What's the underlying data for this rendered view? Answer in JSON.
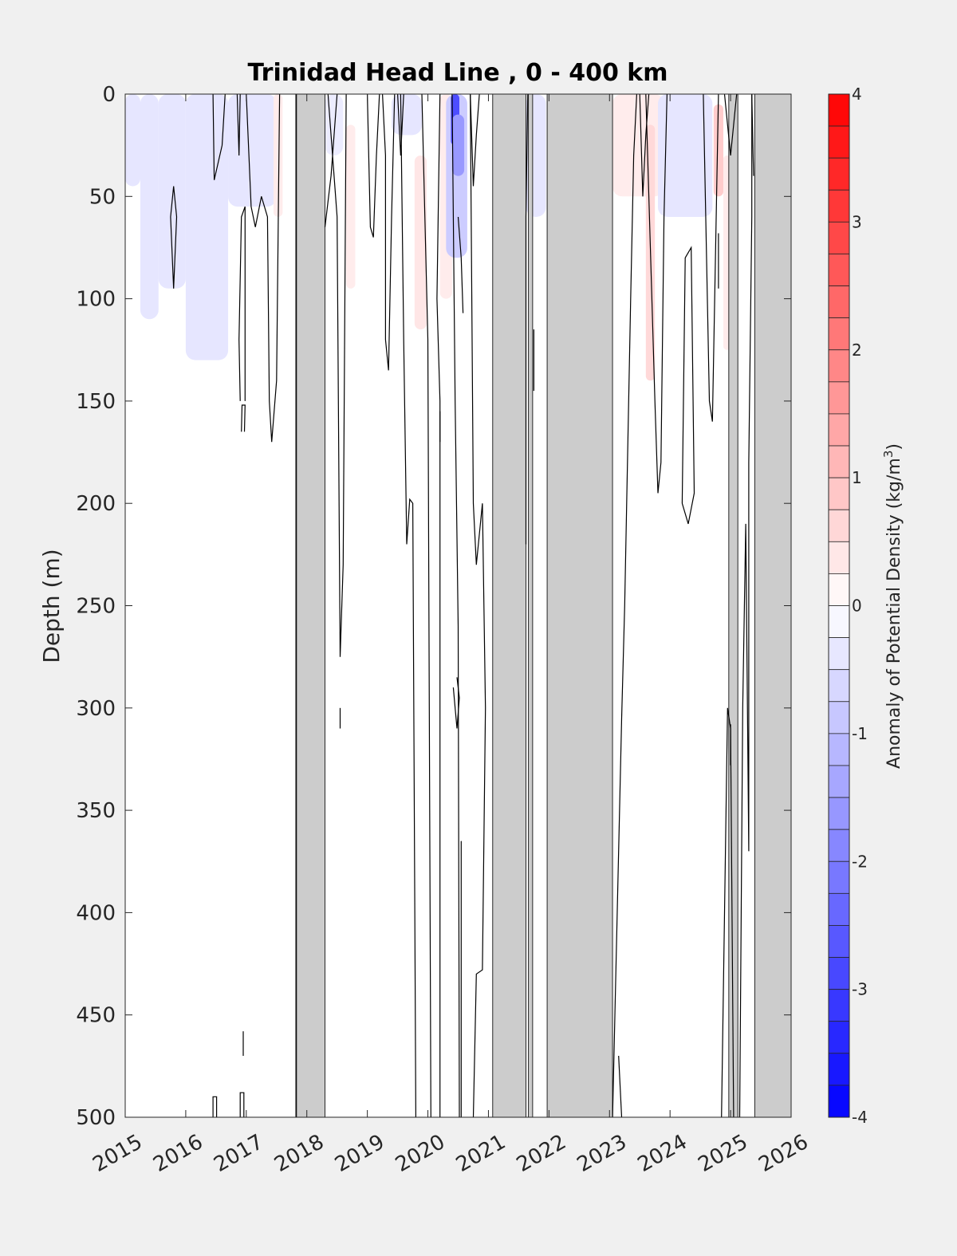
{
  "chart_data": {
    "type": "heatmap",
    "title": "Trinidad Head Line , 0 - 400 km",
    "xlabel": "",
    "ylabel": "Depth (m)",
    "xlim": [
      2015,
      2026
    ],
    "ylim": [
      0,
      500
    ],
    "y_reversed": true,
    "x_ticks": [
      "2015",
      "2016",
      "2017",
      "2018",
      "2019",
      "2020",
      "2021",
      "2022",
      "2023",
      "2024",
      "2025",
      "2026"
    ],
    "y_ticks": [
      "0",
      "50",
      "100",
      "150",
      "200",
      "250",
      "300",
      "350",
      "400",
      "450",
      "500"
    ],
    "colorbar": {
      "label": "Anomaly of Potential Density (kg/m",
      "label_superscript": "3",
      "label_suffix": ")",
      "range": [
        -4,
        4
      ],
      "ticks": [
        "4",
        "3",
        "2",
        "1",
        "0",
        "-1",
        "-2",
        "-3",
        "-4"
      ],
      "levels": 32,
      "color_min": "#0000ff",
      "color_mid": "#ffffff",
      "color_max": "#ff0000"
    },
    "no_data_color": "#cccccc",
    "no_data_periods": [
      [
        2017.83,
        2018.3
      ],
      [
        2021.07,
        2021.62
      ],
      [
        2021.66,
        2021.73
      ],
      [
        2021.97,
        2023.05
      ],
      [
        2024.97,
        2025.12
      ],
      [
        2025.4,
        2026.0
      ]
    ],
    "anomaly_patches": [
      {
        "x0": 2015.0,
        "x1": 2015.25,
        "y0": 0,
        "y1": 45,
        "value": -0.4
      },
      {
        "x0": 2015.25,
        "x1": 2015.55,
        "y0": 0,
        "y1": 110,
        "value": -0.4
      },
      {
        "x0": 2015.55,
        "x1": 2016.0,
        "y0": 0,
        "y1": 95,
        "value": -0.4
      },
      {
        "x0": 2016.0,
        "x1": 2016.7,
        "y0": 0,
        "y1": 130,
        "value": -0.4
      },
      {
        "x0": 2016.7,
        "x1": 2017.5,
        "y0": 0,
        "y1": 55,
        "value": -0.4
      },
      {
        "x0": 2017.45,
        "x1": 2017.6,
        "y0": 0,
        "y1": 60,
        "value": 0.3
      },
      {
        "x0": 2018.3,
        "x1": 2018.6,
        "y0": 0,
        "y1": 30,
        "value": -0.3
      },
      {
        "x0": 2018.65,
        "x1": 2018.8,
        "y0": 15,
        "y1": 95,
        "value": 0.3
      },
      {
        "x0": 2019.4,
        "x1": 2019.9,
        "y0": 0,
        "y1": 20,
        "value": -0.4
      },
      {
        "x0": 2019.78,
        "x1": 2019.98,
        "y0": 30,
        "y1": 115,
        "value": 0.4
      },
      {
        "x0": 2020.2,
        "x1": 2020.4,
        "y0": 0,
        "y1": 100,
        "value": 0.3
      },
      {
        "x0": 2020.3,
        "x1": 2020.65,
        "y0": 0,
        "y1": 80,
        "value": -0.8
      },
      {
        "x0": 2020.38,
        "x1": 2020.52,
        "y0": 0,
        "y1": 25,
        "value": -2.8
      },
      {
        "x0": 2020.4,
        "x1": 2020.6,
        "y0": 10,
        "y1": 40,
        "value": -1.6
      },
      {
        "x0": 2021.62,
        "x1": 2021.95,
        "y0": 0,
        "y1": 60,
        "value": -0.4
      },
      {
        "x0": 2023.05,
        "x1": 2023.9,
        "y0": 0,
        "y1": 50,
        "value": 0.3
      },
      {
        "x0": 2023.6,
        "x1": 2023.75,
        "y0": 15,
        "y1": 140,
        "value": 0.6
      },
      {
        "x0": 2023.8,
        "x1": 2024.7,
        "y0": 0,
        "y1": 60,
        "value": -0.4
      },
      {
        "x0": 2024.72,
        "x1": 2024.88,
        "y0": 5,
        "y1": 50,
        "value": 0.8
      },
      {
        "x0": 2024.88,
        "x1": 2025.0,
        "y0": 30,
        "y1": 125,
        "value": 0.3
      }
    ],
    "contours": [
      [
        [
          2016.45,
          500
        ],
        [
          2016.45,
          490
        ],
        [
          2016.51,
          490
        ],
        [
          2016.51,
          500
        ]
      ],
      [
        [
          2016.9,
          500
        ],
        [
          2016.9,
          488
        ],
        [
          2016.96,
          488
        ],
        [
          2016.96,
          500
        ]
      ],
      [
        [
          2016.95,
          458
        ],
        [
          2016.95,
          470
        ]
      ],
      [
        [
          2015.8,
          95
        ],
        [
          2015.75,
          60
        ],
        [
          2015.8,
          45
        ],
        [
          2015.85,
          60
        ],
        [
          2015.8,
          95
        ]
      ],
      [
        [
          2016.45,
          0
        ],
        [
          2016.47,
          42
        ],
        [
          2016.6,
          25
        ],
        [
          2016.65,
          0
        ]
      ],
      [
        [
          2016.85,
          0
        ],
        [
          2016.88,
          30
        ],
        [
          2016.9,
          0
        ]
      ],
      [
        [
          2016.9,
          150
        ],
        [
          2016.88,
          120
        ],
        [
          2016.92,
          60
        ],
        [
          2016.98,
          55
        ],
        [
          2016.98,
          150
        ]
      ],
      [
        [
          2016.92,
          165
        ],
        [
          2016.93,
          152
        ],
        [
          2016.98,
          152
        ],
        [
          2016.97,
          165
        ]
      ],
      [
        [
          2017.0,
          0
        ],
        [
          2017.08,
          55
        ],
        [
          2017.15,
          65
        ],
        [
          2017.25,
          50
        ],
        [
          2017.35,
          60
        ],
        [
          2017.38,
          150
        ],
        [
          2017.42,
          170
        ],
        [
          2017.5,
          140
        ],
        [
          2017.55,
          0
        ]
      ],
      [
        [
          2017.82,
          500
        ],
        [
          2017.82,
          0
        ]
      ],
      [
        [
          2018.3,
          65
        ],
        [
          2018.4,
          40
        ],
        [
          2018.5,
          0
        ]
      ],
      [
        [
          2018.35,
          0
        ],
        [
          2018.5,
          60
        ],
        [
          2018.55,
          275
        ],
        [
          2018.6,
          230
        ],
        [
          2018.65,
          0
        ]
      ],
      [
        [
          2018.55,
          300
        ],
        [
          2018.55,
          310
        ]
      ],
      [
        [
          2019.0,
          0
        ],
        [
          2019.05,
          65
        ],
        [
          2019.1,
          70
        ],
        [
          2019.15,
          30
        ],
        [
          2019.2,
          0
        ]
      ],
      [
        [
          2019.25,
          0
        ],
        [
          2019.3,
          30
        ],
        [
          2019.3,
          120
        ],
        [
          2019.35,
          135
        ],
        [
          2019.4,
          60
        ],
        [
          2019.45,
          0
        ]
      ],
      [
        [
          2019.5,
          0
        ],
        [
          2019.55,
          30
        ],
        [
          2019.6,
          0
        ]
      ],
      [
        [
          2019.55,
          0
        ],
        [
          2019.6,
          120
        ],
        [
          2019.65,
          220
        ],
        [
          2019.7,
          198
        ],
        [
          2019.75,
          200
        ],
        [
          2019.8,
          500
        ]
      ],
      [
        [
          2019.9,
          0
        ],
        [
          2020.0,
          120
        ],
        [
          2020.05,
          500
        ]
      ],
      [
        [
          2020.2,
          0
        ],
        [
          2020.15,
          100
        ],
        [
          2020.2,
          150
        ],
        [
          2020.2,
          500
        ]
      ],
      [
        [
          2020.2,
          155
        ],
        [
          2020.2,
          170
        ]
      ],
      [
        [
          2020.4,
          0
        ],
        [
          2020.45,
          150
        ],
        [
          2020.5,
          260
        ],
        [
          2020.52,
          500
        ]
      ],
      [
        [
          2020.42,
          290
        ],
        [
          2020.48,
          310
        ],
        [
          2020.52,
          295
        ],
        [
          2020.48,
          285
        ]
      ],
      [
        [
          2020.5,
          60
        ],
        [
          2020.55,
          80
        ],
        [
          2020.58,
          107
        ]
      ],
      [
        [
          2020.55,
          365
        ],
        [
          2020.55,
          500
        ]
      ],
      [
        [
          2020.7,
          0
        ],
        [
          2020.75,
          45
        ],
        [
          2020.8,
          20
        ],
        [
          2020.85,
          0
        ]
      ],
      [
        [
          2020.75,
          500
        ],
        [
          2020.8,
          430
        ],
        [
          2020.9,
          428
        ],
        [
          2020.95,
          300
        ],
        [
          2020.9,
          200
        ],
        [
          2020.8,
          230
        ],
        [
          2020.75,
          200
        ],
        [
          2020.7,
          0
        ]
      ],
      [
        [
          2021.65,
          0
        ],
        [
          2021.62,
          60
        ],
        [
          2021.62,
          220
        ]
      ],
      [
        [
          2021.75,
          115
        ],
        [
          2021.75,
          145
        ]
      ],
      [
        [
          2023.05,
          500
        ],
        [
          2023.2,
          305
        ],
        [
          2023.25,
          250
        ],
        [
          2023.35,
          100
        ],
        [
          2023.4,
          30
        ],
        [
          2023.45,
          0
        ]
      ],
      [
        [
          2023.15,
          470
        ],
        [
          2023.2,
          500
        ]
      ],
      [
        [
          2023.5,
          0
        ],
        [
          2023.55,
          50
        ],
        [
          2023.6,
          20
        ],
        [
          2023.65,
          0
        ]
      ],
      [
        [
          2023.6,
          0
        ],
        [
          2023.7,
          100
        ],
        [
          2023.75,
          150
        ],
        [
          2023.8,
          195
        ],
        [
          2023.85,
          180
        ],
        [
          2023.9,
          60
        ],
        [
          2023.95,
          0
        ]
      ],
      [
        [
          2024.2,
          200
        ],
        [
          2024.25,
          80
        ],
        [
          2024.35,
          75
        ],
        [
          2024.4,
          195
        ],
        [
          2024.3,
          210
        ],
        [
          2024.2,
          200
        ]
      ],
      [
        [
          2024.55,
          0
        ],
        [
          2024.65,
          150
        ],
        [
          2024.7,
          160
        ],
        [
          2024.75,
          80
        ],
        [
          2024.8,
          0
        ]
      ],
      [
        [
          2024.9,
          0
        ],
        [
          2025.0,
          30
        ],
        [
          2025.1,
          0
        ]
      ],
      [
        [
          2024.8,
          68
        ],
        [
          2024.8,
          95
        ]
      ],
      [
        [
          2024.85,
          500
        ],
        [
          2024.95,
          300
        ],
        [
          2025.0,
          310
        ],
        [
          2025.05,
          500
        ]
      ],
      [
        [
          2025.0,
          308
        ],
        [
          2025.0,
          328
        ]
      ],
      [
        [
          2025.15,
          500
        ],
        [
          2025.2,
          300
        ],
        [
          2025.25,
          210
        ],
        [
          2025.3,
          370
        ],
        [
          2025.3,
          180
        ],
        [
          2025.35,
          60
        ],
        [
          2025.35,
          0
        ]
      ],
      [
        [
          2025.35,
          0
        ],
        [
          2025.38,
          40
        ]
      ]
    ]
  }
}
